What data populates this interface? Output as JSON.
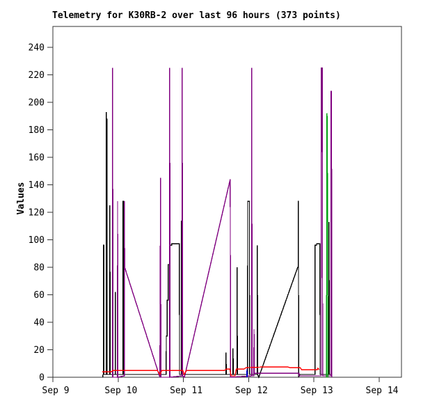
{
  "title": "Telemetry for K30RB-2 over last 96 hours (373 points)",
  "axes": {
    "ylabel": "Values"
  },
  "chart_data": {
    "type": "line",
    "title": "Telemetry for K30RB-2 over last 96 hours (373 points)",
    "xlabel": "",
    "ylabel": "Values",
    "x_unit": "days since Sep 9",
    "xlim": [
      0,
      5.34
    ],
    "ylim": [
      0,
      255
    ],
    "grid": false,
    "legend": "none",
    "y_ticks": [
      0,
      20,
      40,
      60,
      80,
      100,
      120,
      140,
      160,
      180,
      200,
      220,
      240
    ],
    "x_tick_days": [
      0,
      1,
      2,
      3,
      4,
      5
    ],
    "x_tick_labels": [
      "Sep 9",
      "Sep 10",
      "Sep 11",
      "Sep 12",
      "Sep 13",
      "Sep 14"
    ],
    "series": [
      {
        "name": "series-black",
        "color": "#000000",
        "points": [
          [
            0.765,
            0
          ],
          [
            0.768,
            2
          ],
          [
            0.775,
            2
          ],
          [
            0.776,
            96
          ],
          [
            0.78,
            96
          ],
          [
            0.781,
            2
          ],
          [
            0.818,
            2
          ],
          [
            0.819,
            193
          ],
          [
            0.823,
            4
          ],
          [
            0.827,
            188
          ],
          [
            0.831,
            2
          ],
          [
            0.872,
            2
          ],
          [
            0.873,
            125
          ],
          [
            0.877,
            2
          ],
          [
            0.955,
            2
          ],
          [
            0.956,
            62
          ],
          [
            0.96,
            2
          ],
          [
            1.075,
            2
          ],
          [
            1.076,
            128
          ],
          [
            1.083,
            128
          ],
          [
            1.084,
            2
          ],
          [
            1.648,
            2
          ],
          [
            1.649,
            81
          ],
          [
            1.653,
            2
          ],
          [
            1.737,
            2
          ],
          [
            1.738,
            30
          ],
          [
            1.752,
            30
          ],
          [
            1.753,
            56
          ],
          [
            1.768,
            56
          ],
          [
            1.769,
            82
          ],
          [
            1.788,
            82
          ],
          [
            1.789,
            96
          ],
          [
            1.82,
            96
          ],
          [
            1.821,
            97
          ],
          [
            1.939,
            97
          ],
          [
            1.94,
            2
          ],
          [
            1.969,
            2
          ],
          [
            1.97,
            114
          ],
          [
            1.974,
            2
          ],
          [
            2.652,
            2
          ],
          [
            2.653,
            18
          ],
          [
            2.657,
            2
          ],
          [
            2.759,
            2
          ],
          [
            2.76,
            21
          ],
          [
            2.764,
            2
          ],
          [
            2.822,
            2
          ],
          [
            2.823,
            80
          ],
          [
            2.827,
            2
          ],
          [
            2.984,
            2
          ],
          [
            2.985,
            128
          ],
          [
            3.012,
            128
          ],
          [
            3.013,
            2
          ],
          [
            3.044,
            2
          ],
          [
            3.045,
            45
          ],
          [
            3.049,
            2
          ],
          [
            3.132,
            2
          ],
          [
            3.133,
            96
          ],
          [
            3.137,
            2
          ],
          [
            3.155,
            0
          ],
          [
            3.752,
            80
          ],
          [
            3.758,
            80
          ],
          [
            3.759,
            128
          ],
          [
            3.763,
            128
          ],
          [
            3.764,
            0
          ],
          [
            3.785,
            2
          ],
          [
            4.017,
            2
          ],
          [
            4.018,
            96
          ],
          [
            4.04,
            96
          ],
          [
            4.041,
            97
          ],
          [
            4.093,
            97
          ],
          [
            4.094,
            2
          ],
          [
            4.23,
            2
          ],
          [
            4.231,
            113
          ],
          [
            4.236,
            2
          ],
          [
            4.27,
            2
          ],
          [
            4.274,
            0
          ]
        ]
      },
      {
        "name": "series-purple",
        "color": "#800080",
        "points": [
          [
            0.915,
            0
          ],
          [
            0.916,
            225
          ],
          [
            0.92,
            0
          ],
          [
            0.99,
            0
          ],
          [
            0.991,
            128
          ],
          [
            0.995,
            0
          ],
          [
            1.094,
            1
          ],
          [
            1.095,
            128
          ],
          [
            1.1,
            80
          ],
          [
            1.64,
            0
          ],
          [
            1.65,
            145
          ],
          [
            1.655,
            0
          ],
          [
            1.789,
            0
          ],
          [
            1.79,
            225
          ],
          [
            1.795,
            0
          ],
          [
            1.981,
            1
          ],
          [
            1.982,
            225
          ],
          [
            1.987,
            1
          ],
          [
            2.015,
            0
          ],
          [
            2.718,
            144
          ],
          [
            2.722,
            0
          ],
          [
            3.046,
            1
          ],
          [
            3.047,
            225
          ],
          [
            3.052,
            1
          ],
          [
            3.08,
            1
          ],
          [
            3.081,
            35
          ],
          [
            3.086,
            3
          ],
          [
            3.77,
            3
          ],
          [
            3.772,
            1
          ],
          [
            4.11,
            1
          ],
          [
            4.112,
            225
          ],
          [
            4.13,
            225
          ],
          [
            4.132,
            1
          ],
          [
            4.262,
            1
          ],
          [
            4.263,
            208
          ],
          [
            4.27,
            208
          ],
          [
            4.272,
            0
          ]
        ]
      },
      {
        "name": "series-green",
        "color": "#00a010",
        "points": [
          [
            4.19,
            0
          ],
          [
            4.194,
            0
          ],
          [
            4.196,
            192
          ],
          [
            4.201,
            190
          ],
          [
            4.203,
            150
          ],
          [
            4.208,
            148
          ],
          [
            4.21,
            60
          ],
          [
            4.213,
            58
          ],
          [
            4.215,
            0
          ]
        ]
      },
      {
        "name": "series-blue",
        "color": "#0000cc",
        "points": [
          [
            2.972,
            0
          ],
          [
            2.974,
            6
          ],
          [
            2.977,
            0
          ]
        ]
      },
      {
        "name": "series-red",
        "color": "#ff0000",
        "points": [
          [
            0.757,
            4
          ],
          [
            0.9,
            4
          ],
          [
            0.92,
            5
          ],
          [
            1.6,
            5
          ],
          [
            1.64,
            2
          ],
          [
            1.67,
            5
          ],
          [
            1.99,
            5
          ],
          [
            2.01,
            2
          ],
          [
            2.05,
            5
          ],
          [
            2.63,
            5
          ],
          [
            2.66,
            6
          ],
          [
            2.71,
            6
          ],
          [
            2.73,
            1
          ],
          [
            2.79,
            1
          ],
          [
            2.81,
            6
          ],
          [
            2.93,
            6
          ],
          [
            2.96,
            7
          ],
          [
            3.25,
            7.5
          ],
          [
            3.6,
            7.5
          ],
          [
            3.63,
            7
          ],
          [
            3.79,
            7
          ],
          [
            3.81,
            5.5
          ],
          [
            4.05,
            5.5
          ],
          [
            4.06,
            6.5
          ],
          [
            4.08,
            5.5
          ]
        ]
      }
    ],
    "frame_color": "#333333"
  }
}
